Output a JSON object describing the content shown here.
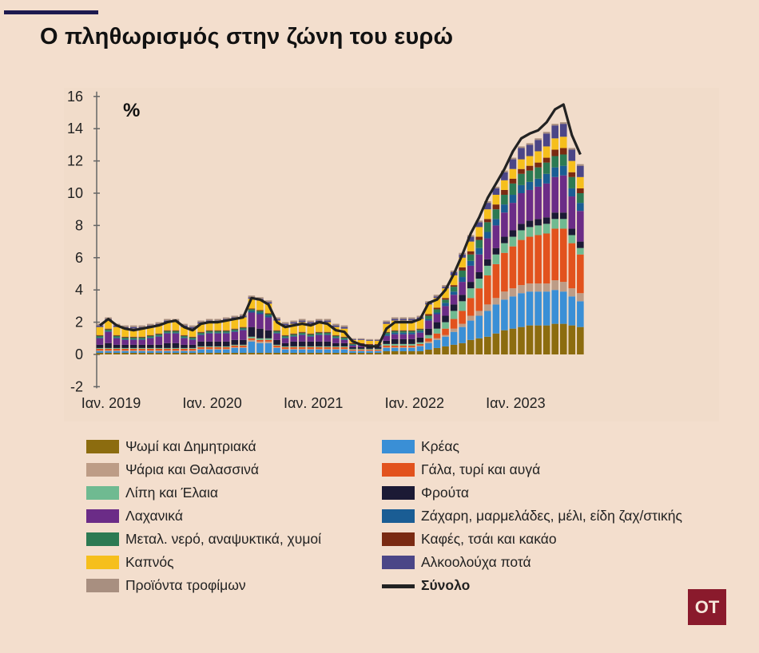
{
  "title": "Ο πληθωρισμός στην ζώνη του ευρώ",
  "logo_text": "OT",
  "chart_data": {
    "type": "bar",
    "stacked": true,
    "y_unit_label": "%",
    "ylim": [
      -2,
      16
    ],
    "y_ticks": [
      16,
      14,
      12,
      10,
      8,
      6,
      4,
      2,
      0,
      -2
    ],
    "x_tick_labels": [
      "Ιαν. 2019",
      "Ιαν. 2020",
      "Ιαν. 2021",
      "Ιαν. 2022",
      "Ιαν. 2023"
    ],
    "x_tick_index": [
      0,
      12,
      24,
      36,
      48
    ],
    "months": [
      "2019-01",
      "2019-02",
      "2019-03",
      "2019-04",
      "2019-05",
      "2019-06",
      "2019-07",
      "2019-08",
      "2019-09",
      "2019-10",
      "2019-11",
      "2019-12",
      "2020-01",
      "2020-02",
      "2020-03",
      "2020-04",
      "2020-05",
      "2020-06",
      "2020-07",
      "2020-08",
      "2020-09",
      "2020-10",
      "2020-11",
      "2020-12",
      "2021-01",
      "2021-02",
      "2021-03",
      "2021-04",
      "2021-05",
      "2021-06",
      "2021-07",
      "2021-08",
      "2021-09",
      "2021-10",
      "2021-11",
      "2021-12",
      "2022-01",
      "2022-02",
      "2022-03",
      "2022-04",
      "2022-05",
      "2022-06",
      "2022-07",
      "2022-08",
      "2022-09",
      "2022-10",
      "2022-11",
      "2022-12",
      "2023-01",
      "2023-02",
      "2023-03",
      "2023-04",
      "2023-05",
      "2023-06",
      "2023-07",
      "2023-08",
      "2023-09",
      "2023-10"
    ],
    "total": [
      1.8,
      2.2,
      1.8,
      1.6,
      1.5,
      1.6,
      1.7,
      1.8,
      2.0,
      2.1,
      1.7,
      1.5,
      1.9,
      2.0,
      2.0,
      2.1,
      2.2,
      2.3,
      3.5,
      3.4,
      3.1,
      2.0,
      1.7,
      1.8,
      1.9,
      1.8,
      2.0,
      1.9,
      1.5,
      1.4,
      0.8,
      0.6,
      0.5,
      0.5,
      1.6,
      2.0,
      2.0,
      2.0,
      2.2,
      3.2,
      3.4,
      4.0,
      5.0,
      6.2,
      7.5,
      8.5,
      9.7,
      10.6,
      11.5,
      12.6,
      13.4,
      13.7,
      13.9,
      14.4,
      15.2,
      15.5,
      13.6,
      12.4
    ],
    "series": [
      {
        "name": "Ψωμί και Δημητριακά",
        "color": "#8c6c0f",
        "values": [
          0.1,
          0.1,
          0.1,
          0.1,
          0.1,
          0.1,
          0.1,
          0.1,
          0.1,
          0.1,
          0.1,
          0.1,
          0.1,
          0.1,
          0.1,
          0.1,
          0.1,
          0.1,
          0.1,
          0.1,
          0.1,
          0.1,
          0.1,
          0.1,
          0.1,
          0.1,
          0.1,
          0.1,
          0.1,
          0.1,
          0.1,
          0.1,
          0.1,
          0.1,
          0.2,
          0.2,
          0.2,
          0.2,
          0.2,
          0.3,
          0.4,
          0.5,
          0.6,
          0.7,
          0.9,
          1.0,
          1.1,
          1.3,
          1.5,
          1.6,
          1.7,
          1.8,
          1.8,
          1.8,
          1.9,
          1.9,
          1.8,
          1.7
        ]
      },
      {
        "name": "Κρέας",
        "color": "#3a8fd6",
        "values": [
          0.1,
          0.1,
          0.1,
          0.1,
          0.1,
          0.1,
          0.1,
          0.1,
          0.1,
          0.1,
          0.1,
          0.1,
          0.2,
          0.2,
          0.2,
          0.2,
          0.3,
          0.3,
          0.7,
          0.6,
          0.6,
          0.3,
          0.2,
          0.2,
          0.2,
          0.2,
          0.2,
          0.2,
          0.2,
          0.2,
          0.1,
          0.1,
          0.1,
          0.1,
          0.2,
          0.2,
          0.2,
          0.2,
          0.3,
          0.4,
          0.5,
          0.6,
          0.8,
          1.0,
          1.2,
          1.4,
          1.6,
          1.8,
          1.9,
          2.0,
          2.1,
          2.1,
          2.1,
          2.1,
          2.1,
          2.0,
          1.8,
          1.6
        ]
      },
      {
        "name": "Ψάρια και Θαλασσινά",
        "color": "#bd9c86",
        "values": [
          0.05,
          0.05,
          0.05,
          0.05,
          0.05,
          0.05,
          0.05,
          0.05,
          0.05,
          0.05,
          0.05,
          0.05,
          0.05,
          0.05,
          0.05,
          0.05,
          0.05,
          0.05,
          0.1,
          0.1,
          0.1,
          0.05,
          0.05,
          0.05,
          0.05,
          0.05,
          0.05,
          0.05,
          0.05,
          0.05,
          0.05,
          0.05,
          0.05,
          0.05,
          0.05,
          0.05,
          0.05,
          0.05,
          0.05,
          0.1,
          0.1,
          0.1,
          0.2,
          0.2,
          0.3,
          0.3,
          0.4,
          0.4,
          0.5,
          0.5,
          0.5,
          0.5,
          0.5,
          0.5,
          0.6,
          0.6,
          0.5,
          0.5
        ]
      },
      {
        "name": "Γάλα, τυρί και αυγά",
        "color": "#e2521d",
        "values": [
          0.1,
          0.1,
          0.1,
          0.1,
          0.1,
          0.1,
          0.1,
          0.1,
          0.1,
          0.1,
          0.1,
          0.1,
          0.1,
          0.1,
          0.1,
          0.1,
          0.1,
          0.1,
          0.1,
          0.1,
          0.1,
          0.1,
          0.1,
          0.1,
          0.1,
          0.1,
          0.1,
          0.1,
          0.1,
          0.1,
          0.05,
          0.05,
          0.05,
          0.05,
          0.1,
          0.1,
          0.1,
          0.1,
          0.1,
          0.2,
          0.3,
          0.4,
          0.6,
          0.8,
          1.1,
          1.4,
          1.8,
          2.1,
          2.4,
          2.6,
          2.8,
          2.9,
          3.0,
          3.1,
          3.2,
          3.3,
          2.8,
          2.4
        ]
      },
      {
        "name": "Λίπη και Έλαια",
        "color": "#6fba91",
        "values": [
          0.05,
          0.05,
          0.05,
          0.05,
          0.05,
          0.05,
          0.05,
          0.05,
          0.05,
          0.05,
          0.05,
          0.05,
          0.05,
          0.05,
          0.05,
          0.05,
          0.05,
          0.05,
          0.1,
          0.1,
          0.1,
          0.05,
          0.05,
          0.05,
          0.05,
          0.05,
          0.05,
          0.05,
          0.05,
          0.05,
          0.05,
          0.05,
          0.05,
          0.05,
          0.1,
          0.1,
          0.1,
          0.1,
          0.1,
          0.2,
          0.3,
          0.4,
          0.5,
          0.6,
          0.6,
          0.6,
          0.6,
          0.6,
          0.6,
          0.6,
          0.6,
          0.6,
          0.6,
          0.6,
          0.6,
          0.6,
          0.5,
          0.4
        ]
      },
      {
        "name": "Φρούτα",
        "color": "#1b1a35",
        "values": [
          0.2,
          0.3,
          0.2,
          0.2,
          0.2,
          0.2,
          0.2,
          0.2,
          0.3,
          0.3,
          0.2,
          0.2,
          0.3,
          0.3,
          0.3,
          0.3,
          0.3,
          0.3,
          0.6,
          0.6,
          0.5,
          0.3,
          0.2,
          0.3,
          0.3,
          0.3,
          0.3,
          0.3,
          0.2,
          0.2,
          0.1,
          0.1,
          0.1,
          0.1,
          0.2,
          0.3,
          0.3,
          0.3,
          0.3,
          0.4,
          0.4,
          0.4,
          0.4,
          0.4,
          0.4,
          0.4,
          0.4,
          0.4,
          0.4,
          0.4,
          0.4,
          0.4,
          0.4,
          0.4,
          0.4,
          0.4,
          0.4,
          0.4
        ]
      },
      {
        "name": "Λαχανικά",
        "color": "#6b2c87",
        "values": [
          0.4,
          0.7,
          0.4,
          0.3,
          0.3,
          0.3,
          0.4,
          0.5,
          0.6,
          0.6,
          0.4,
          0.3,
          0.4,
          0.5,
          0.5,
          0.5,
          0.5,
          0.6,
          0.9,
          0.9,
          0.8,
          0.4,
          0.3,
          0.3,
          0.4,
          0.3,
          0.4,
          0.4,
          0.3,
          0.2,
          0.1,
          0.1,
          0.05,
          0.05,
          0.3,
          0.3,
          0.3,
          0.3,
          0.3,
          0.5,
          0.5,
          0.6,
          0.6,
          0.8,
          1.0,
          1.1,
          1.3,
          1.4,
          1.5,
          1.7,
          1.9,
          1.9,
          2.0,
          2.1,
          2.2,
          2.3,
          2.0,
          1.9
        ]
      },
      {
        "name": "Ζάχαρη, μαρμελάδες, μέλι, είδη ζαχ/στικής",
        "color": "#1a5d94",
        "values": [
          0.05,
          0.05,
          0.05,
          0.05,
          0.05,
          0.05,
          0.05,
          0.05,
          0.05,
          0.05,
          0.05,
          0.05,
          0.05,
          0.05,
          0.05,
          0.05,
          0.05,
          0.05,
          0.1,
          0.1,
          0.1,
          0.05,
          0.05,
          0.05,
          0.05,
          0.05,
          0.05,
          0.05,
          0.05,
          0.05,
          0.05,
          0.05,
          0.05,
          0.05,
          0.1,
          0.1,
          0.1,
          0.1,
          0.1,
          0.1,
          0.1,
          0.2,
          0.2,
          0.3,
          0.3,
          0.4,
          0.4,
          0.4,
          0.5,
          0.5,
          0.5,
          0.5,
          0.5,
          0.6,
          0.6,
          0.6,
          0.5,
          0.5
        ]
      },
      {
        "name": "Μεταλ. νερό, αναψυκτικά, χυμοί",
        "color": "#2c7a53",
        "values": [
          0.1,
          0.1,
          0.1,
          0.1,
          0.1,
          0.1,
          0.1,
          0.1,
          0.1,
          0.1,
          0.1,
          0.1,
          0.1,
          0.1,
          0.1,
          0.1,
          0.1,
          0.1,
          0.1,
          0.1,
          0.1,
          0.1,
          0.1,
          0.1,
          0.1,
          0.1,
          0.1,
          0.1,
          0.1,
          0.1,
          0.05,
          0.05,
          0.05,
          0.05,
          0.1,
          0.1,
          0.1,
          0.1,
          0.1,
          0.2,
          0.2,
          0.2,
          0.3,
          0.4,
          0.4,
          0.5,
          0.6,
          0.6,
          0.6,
          0.7,
          0.7,
          0.7,
          0.7,
          0.7,
          0.7,
          0.7,
          0.7,
          0.6
        ]
      },
      {
        "name": "Καφές, τσάι και κακάο",
        "color": "#7a2a12",
        "values": [
          0.05,
          0.05,
          0.05,
          0.05,
          0.05,
          0.05,
          0.05,
          0.05,
          0.05,
          0.05,
          0.05,
          0.05,
          0.05,
          0.05,
          0.05,
          0.05,
          0.05,
          0.05,
          0.05,
          0.05,
          0.05,
          0.05,
          0.05,
          0.05,
          0.05,
          0.05,
          0.05,
          0.05,
          0.05,
          0.05,
          0.05,
          0.05,
          0.05,
          0.05,
          0.05,
          0.05,
          0.05,
          0.05,
          0.05,
          0.1,
          0.1,
          0.1,
          0.1,
          0.2,
          0.2,
          0.2,
          0.2,
          0.3,
          0.3,
          0.3,
          0.3,
          0.3,
          0.3,
          0.3,
          0.4,
          0.4,
          0.3,
          0.3
        ]
      },
      {
        "name": "Καπνός",
        "color": "#f6bf1c",
        "values": [
          0.5,
          0.5,
          0.5,
          0.5,
          0.5,
          0.5,
          0.5,
          0.5,
          0.5,
          0.5,
          0.5,
          0.5,
          0.5,
          0.5,
          0.5,
          0.6,
          0.6,
          0.6,
          0.6,
          0.6,
          0.6,
          0.6,
          0.6,
          0.6,
          0.6,
          0.6,
          0.6,
          0.6,
          0.5,
          0.5,
          0.2,
          0.2,
          0.2,
          0.2,
          0.5,
          0.6,
          0.6,
          0.6,
          0.6,
          0.6,
          0.6,
          0.6,
          0.6,
          0.6,
          0.6,
          0.6,
          0.6,
          0.6,
          0.6,
          0.6,
          0.6,
          0.6,
          0.7,
          0.7,
          0.7,
          0.7,
          0.7,
          0.7
        ]
      },
      {
        "name": "Αλκοολούχα ποτά",
        "color": "#4b4687",
        "values": [
          0.1,
          0.1,
          0.1,
          0.1,
          0.1,
          0.1,
          0.1,
          0.1,
          0.1,
          0.1,
          0.1,
          0.1,
          0.1,
          0.1,
          0.1,
          0.1,
          0.1,
          0.1,
          0.1,
          0.1,
          0.1,
          0.1,
          0.1,
          0.1,
          0.1,
          0.1,
          0.1,
          0.1,
          0.1,
          0.1,
          0.05,
          0.05,
          0.05,
          0.05,
          0.1,
          0.1,
          0.1,
          0.1,
          0.1,
          0.1,
          0.1,
          0.1,
          0.2,
          0.2,
          0.3,
          0.3,
          0.4,
          0.4,
          0.5,
          0.6,
          0.7,
          0.7,
          0.7,
          0.8,
          0.8,
          0.8,
          0.7,
          0.7
        ]
      },
      {
        "name": "Προϊόντα τροφίμων",
        "color": "#a88f80",
        "values": [
          0.1,
          0.1,
          0.1,
          0.1,
          0.1,
          0.1,
          0.1,
          0.1,
          0.1,
          0.1,
          0.1,
          0.1,
          0.1,
          0.1,
          0.1,
          0.1,
          0.1,
          0.1,
          0.1,
          0.1,
          0.1,
          0.1,
          0.1,
          0.1,
          0.1,
          0.1,
          0.1,
          0.1,
          0.1,
          0.1,
          0.05,
          0.05,
          0.05,
          0.05,
          0.1,
          0.1,
          0.1,
          0.1,
          0.1,
          0.1,
          0.1,
          0.1,
          0.1,
          0.1,
          0.1,
          0.1,
          0.1,
          0.1,
          0.1,
          0.1,
          0.1,
          0.1,
          0.1,
          0.1,
          0.1,
          0.1,
          0.1,
          0.1
        ]
      }
    ],
    "total_series": {
      "name": "Σύνολο",
      "color": "#222222"
    },
    "legend": {
      "col1": [
        {
          "label": "Ψωμί και Δημητριακά",
          "color": "#8c6c0f"
        },
        {
          "label": "Ψάρια και Θαλασσινά",
          "color": "#bd9c86"
        },
        {
          "label": "Λίπη και Έλαια",
          "color": "#6fba91"
        },
        {
          "label": "Λαχανικά",
          "color": "#6b2c87"
        },
        {
          "label": "Μεταλ. νερό, αναψυκτικά, χυμοί",
          "color": "#2c7a53"
        },
        {
          "label": "Καπνός",
          "color": "#f6bf1c"
        },
        {
          "label": "Προϊόντα τροφίμων",
          "color": "#a88f80"
        }
      ],
      "col2": [
        {
          "label": "Κρέας",
          "color": "#3a8fd6"
        },
        {
          "label": "Γάλα, τυρί και αυγά",
          "color": "#e2521d"
        },
        {
          "label": "Φρούτα",
          "color": "#1b1a35"
        },
        {
          "label": "Ζάχαρη, μαρμελάδες, μέλι, είδη ζαχ/στικής",
          "color": "#1a5d94"
        },
        {
          "label": "Καφές, τσάι και κακάο",
          "color": "#7a2a12"
        },
        {
          "label": "Αλκοολούχα ποτά",
          "color": "#4b4687"
        },
        {
          "label": "Σύνολο",
          "color": "#222222",
          "line": true,
          "bold": true
        }
      ]
    }
  }
}
